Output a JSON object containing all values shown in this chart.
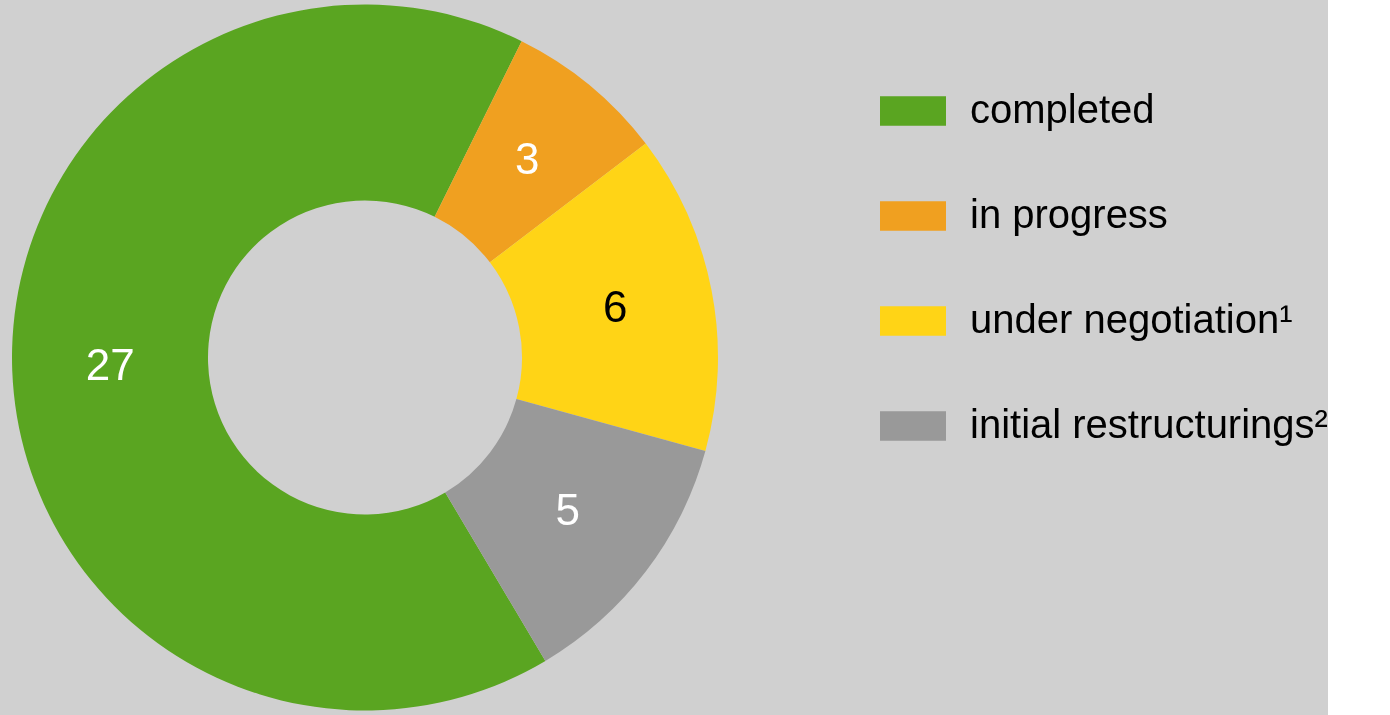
{
  "chart_data": {
    "type": "donut",
    "categories": [
      "completed",
      "in progress",
      "under negotiation¹",
      "initial restructurings²"
    ],
    "values": [
      27,
      3,
      6,
      5
    ],
    "colors": [
      "#5aa521",
      "#f0a020",
      "#ffd416",
      "#999999"
    ],
    "data_labels": true,
    "legend": "right"
  }
}
